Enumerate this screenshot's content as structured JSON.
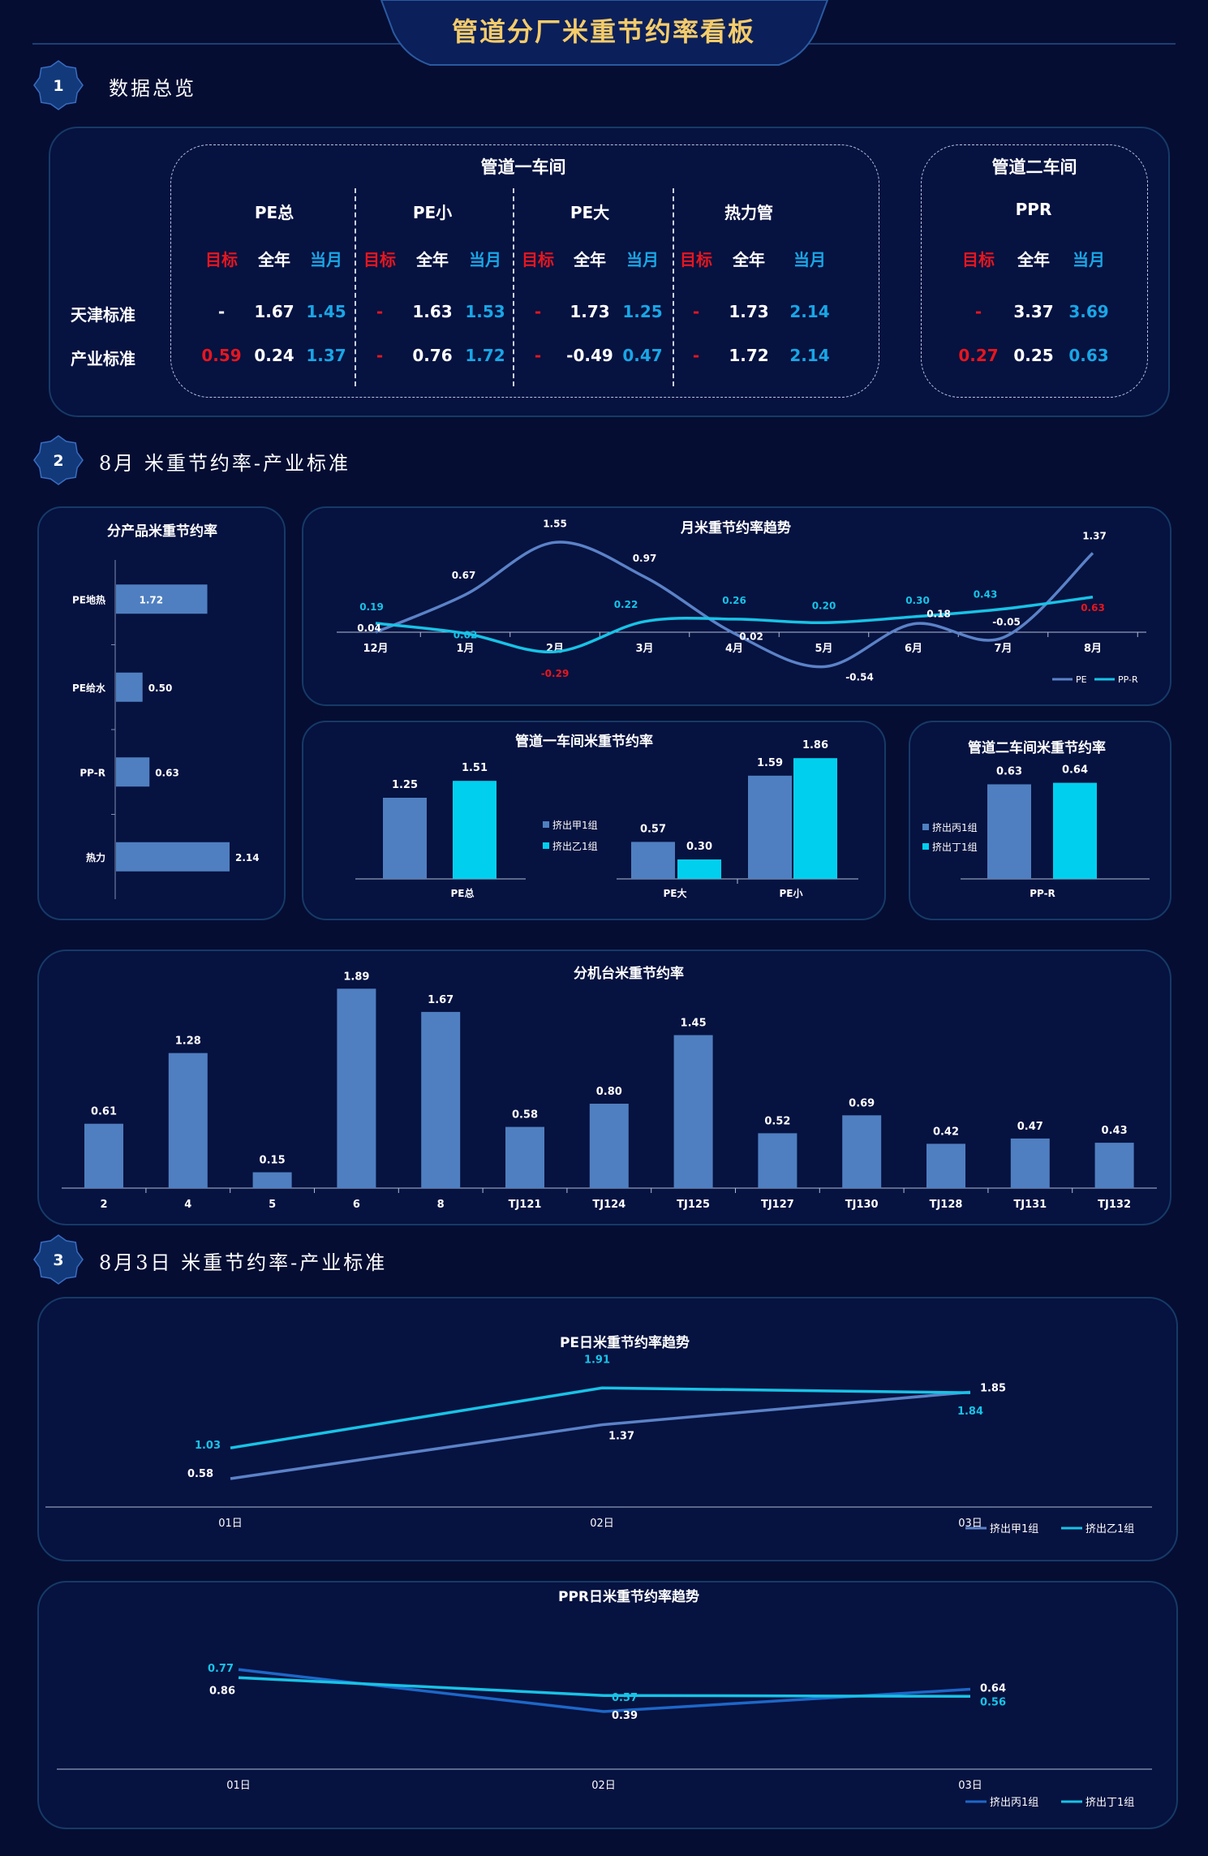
{
  "title": "管道分厂米重节约率看板",
  "sections": [
    {
      "num": "1",
      "title": "数据总览"
    },
    {
      "num": "2",
      "title": "8月 米重节约率-产业标准"
    },
    {
      "num": "3",
      "title": "8月3日  米重节约率-产业标准"
    }
  ],
  "overview": {
    "workshop1": "管道一车间",
    "workshop2": "管道二车间",
    "groups": [
      {
        "name": "PE总",
        "target": "目标",
        "year": "全年",
        "month": "当月",
        "tj": [
          "-",
          "1.67",
          "1.45"
        ],
        "ind": [
          "0.59",
          "0.24",
          "1.37"
        ]
      },
      {
        "name": "PE小",
        "target": "目标",
        "year": "全年",
        "month": "当月",
        "tj": [
          "-",
          "1.63",
          "1.53"
        ],
        "ind": [
          "-",
          "0.76",
          "1.72"
        ]
      },
      {
        "name": "PE大",
        "target": "目标",
        "year": "全年",
        "month": "当月",
        "tj": [
          "-",
          "1.73",
          "1.25"
        ],
        "ind": [
          "-",
          "-0.49",
          "0.47"
        ]
      },
      {
        "name": "热力管",
        "target": "目标",
        "year": "全年",
        "month": "当月",
        "tj": [
          "-",
          "1.73",
          "2.14"
        ],
        "ind": [
          "-",
          "1.72",
          "2.14"
        ]
      },
      {
        "name": "PPR",
        "target": "目标",
        "year": "全年",
        "month": "当月",
        "tj": [
          "-",
          "3.37",
          "3.69"
        ],
        "ind": [
          "0.27",
          "0.25",
          "0.63"
        ]
      }
    ],
    "row_labels": [
      "天津标准",
      "产业标准"
    ]
  },
  "colors": {
    "bar": "#4f7fc0",
    "bar_light": "#00d0ee",
    "line_pe": "#5b82c7",
    "line_ppr": "#17c3e6",
    "red": "#e6161f",
    "blue": "#18a6e6",
    "bg": "#050d33"
  },
  "chart_data": [
    {
      "id": "product",
      "type": "bar",
      "orientation": "horizontal",
      "title": "分产品米重节约率",
      "categories": [
        "PE地热",
        "PE给水",
        "PP-R",
        "热力"
      ],
      "values": [
        1.72,
        0.5,
        0.63,
        2.14
      ],
      "labels": [
        "1.72",
        "0.50",
        "0.63",
        "2.14"
      ]
    },
    {
      "id": "trend",
      "type": "line",
      "title": "月米重节约率趋势",
      "categories": [
        "12月",
        "1月",
        "2月",
        "3月",
        "4月",
        "5月",
        "6月",
        "7月",
        "8月"
      ],
      "series": [
        {
          "name": "PE",
          "values": [
            0.04,
            0.67,
            1.55,
            0.97,
            0.02,
            -0.54,
            0.18,
            -0.05,
            1.37
          ],
          "labels": [
            "0.04",
            "0.67",
            "1.55",
            "0.97",
            "0.02",
            "-0.54",
            "0.18",
            "-0.05",
            "1.37"
          ]
        },
        {
          "name": "PP-R",
          "values": [
            0.19,
            0.02,
            -0.29,
            0.22,
            0.26,
            0.2,
            0.3,
            0.43,
            0.63
          ],
          "labels": [
            "0.19",
            "0.02",
            "-0.29",
            "0.22",
            "0.26",
            "0.20",
            "0.30",
            "0.43",
            "0.63"
          ]
        }
      ],
      "ylim": [
        -0.9,
        2.0
      ]
    },
    {
      "id": "ws1",
      "type": "bar",
      "title": "管道一车间米重节约率",
      "categories": [
        "PE总",
        "PE大",
        "PE小"
      ],
      "series": [
        {
          "name": "挤出甲1组",
          "values": [
            1.25,
            0.57,
            1.59
          ],
          "labels": [
            "1.25",
            "0.57",
            "1.59"
          ]
        },
        {
          "name": "挤出乙1组",
          "values": [
            1.51,
            0.3,
            1.86
          ],
          "labels": [
            "1.51",
            "0.30",
            "1.86"
          ]
        }
      ]
    },
    {
      "id": "ws2",
      "type": "bar",
      "title": "管道二车间米重节约率",
      "categories": [
        "PP-R"
      ],
      "series": [
        {
          "name": "挤出丙1组",
          "values": [
            0.63
          ],
          "labels": [
            "0.63"
          ]
        },
        {
          "name": "挤出丁1组",
          "values": [
            0.64
          ],
          "labels": [
            "0.64"
          ]
        }
      ]
    },
    {
      "id": "machine",
      "type": "bar",
      "title": "分机台米重节约率",
      "categories": [
        "2",
        "4",
        "5",
        "6",
        "8",
        "TJ121",
        "TJ124",
        "TJ125",
        "TJ127",
        "TJ130",
        "TJ128",
        "TJ131",
        "TJ132"
      ],
      "values": [
        0.61,
        1.28,
        0.15,
        1.89,
        1.67,
        0.58,
        0.8,
        1.45,
        0.52,
        0.69,
        0.42,
        0.47,
        0.43
      ],
      "labels": [
        "0.61",
        "1.28",
        "0.15",
        "1.89",
        "1.67",
        "0.58",
        "0.80",
        "1.45",
        "0.52",
        "0.69",
        "0.42",
        "0.47",
        "0.43"
      ]
    },
    {
      "id": "pe_daily",
      "type": "line",
      "title": "PE日米重节约率趋势",
      "categories": [
        "01日",
        "02日",
        "03日"
      ],
      "series": [
        {
          "name": "挤出甲1组",
          "values": [
            0.58,
            1.37,
            1.85
          ],
          "labels": [
            "0.58",
            "1.37",
            "1.85"
          ]
        },
        {
          "name": "挤出乙1组",
          "values": [
            1.03,
            1.91,
            1.84
          ],
          "labels": [
            "1.03",
            "1.91",
            "1.84"
          ]
        }
      ]
    },
    {
      "id": "ppr_daily",
      "type": "line",
      "title": "PPR日米重节约率趋势",
      "categories": [
        "01日",
        "02日",
        "03日"
      ],
      "series": [
        {
          "name": "挤出丙1组",
          "values": [
            0.86,
            0.39,
            0.64
          ],
          "labels": [
            "0.86",
            "0.39",
            "0.64"
          ]
        },
        {
          "name": "挤出丁1组",
          "values": [
            0.77,
            0.57,
            0.56
          ],
          "labels": [
            "0.77",
            "0.57",
            "0.56"
          ]
        }
      ]
    }
  ]
}
